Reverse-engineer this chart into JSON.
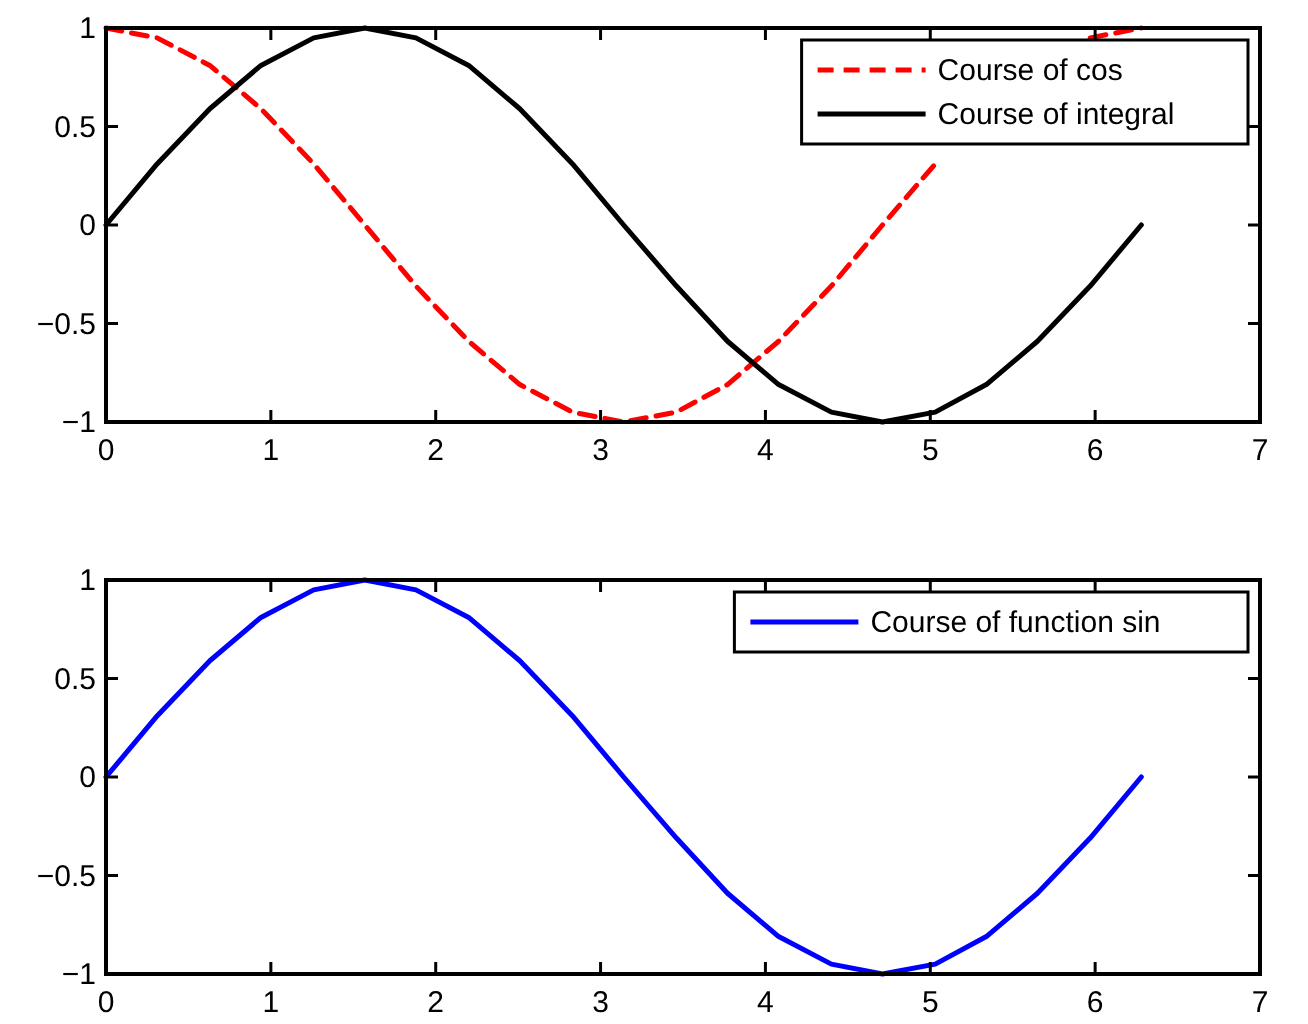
{
  "chart_data": [
    {
      "type": "line",
      "x": [
        0,
        0.31,
        0.63,
        0.94,
        1.26,
        1.57,
        1.88,
        2.2,
        2.51,
        2.83,
        3.14,
        3.46,
        3.77,
        4.08,
        4.4,
        4.71,
        5.03,
        5.34,
        5.65,
        5.97,
        6.28
      ],
      "series": [
        {
          "name": "Course of cos",
          "color": "#ff0000",
          "line_style": "dashed",
          "values": [
            1,
            0.95,
            0.81,
            0.59,
            0.31,
            0,
            -0.31,
            -0.59,
            -0.81,
            -0.95,
            -1,
            -0.95,
            -0.81,
            -0.59,
            -0.31,
            0,
            0.31,
            null,
            null,
            0.95,
            1
          ]
        },
        {
          "name": "Course of integral",
          "color": "#000000",
          "line_style": "solid",
          "values": [
            0,
            0.31,
            0.59,
            0.81,
            0.95,
            1,
            0.95,
            0.81,
            0.59,
            0.31,
            0,
            -0.31,
            -0.59,
            -0.81,
            -0.95,
            -1,
            -0.95,
            -0.81,
            -0.59,
            -0.31,
            0
          ]
        }
      ],
      "xlim": [
        0,
        7
      ],
      "xticks": [
        0,
        1,
        2,
        3,
        4,
        5,
        6,
        7
      ],
      "ylim": [
        -1,
        1
      ],
      "yticks": [
        -1,
        -0.5,
        0,
        0.5,
        1
      ],
      "legend": "top right",
      "grid": false
    },
    {
      "type": "line",
      "x": [
        0,
        0.31,
        0.63,
        0.94,
        1.26,
        1.57,
        1.88,
        2.2,
        2.51,
        2.83,
        3.14,
        3.46,
        3.77,
        4.08,
        4.4,
        4.71,
        5.03,
        5.34,
        5.65,
        5.97,
        6.28
      ],
      "series": [
        {
          "name": "Course of function sin",
          "color": "#0000ff",
          "line_style": "solid",
          "values": [
            0,
            0.31,
            0.59,
            0.81,
            0.95,
            1,
            0.95,
            0.81,
            0.59,
            0.31,
            0,
            -0.31,
            -0.59,
            -0.81,
            -0.95,
            -1,
            -0.95,
            -0.81,
            -0.59,
            -0.31,
            0
          ]
        }
      ],
      "xlim": [
        0,
        7
      ],
      "xticks": [
        0,
        1,
        2,
        3,
        4,
        5,
        6,
        7
      ],
      "ylim": [
        -1,
        1
      ],
      "yticks": [
        -1,
        -0.5,
        0,
        0.5,
        1
      ],
      "legend": "top right",
      "grid": false
    }
  ]
}
